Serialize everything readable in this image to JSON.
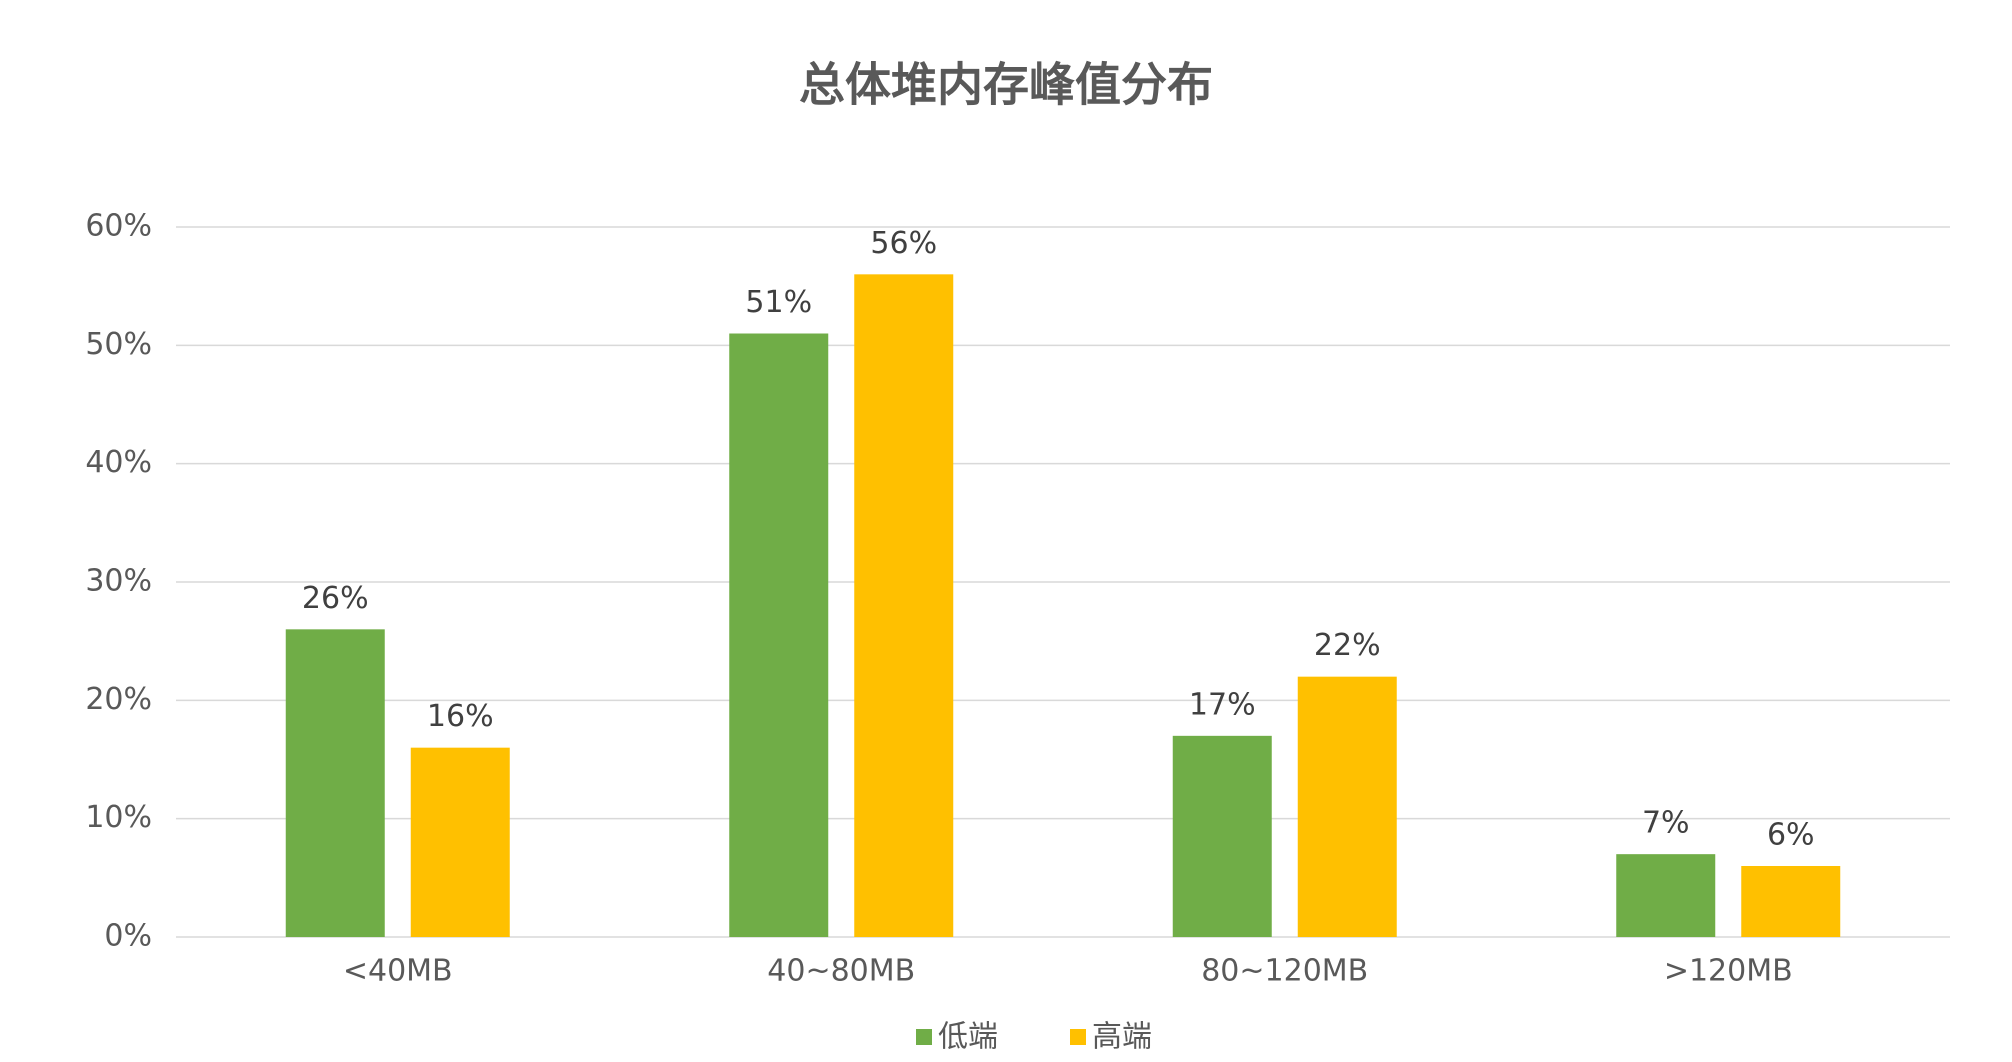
{
  "chart_data": {
    "type": "bar",
    "title": "总体堆内存峰值分布",
    "categories": [
      "<40MB",
      "40~80MB",
      "80~120MB",
      ">120MB"
    ],
    "series": [
      {
        "name": "低端",
        "color": "#70ad47",
        "values": [
          26,
          51,
          17,
          7
        ],
        "value_labels": [
          "26%",
          "51%",
          "17%",
          "7%"
        ]
      },
      {
        "name": "高端",
        "color": "#ffc000",
        "values": [
          16,
          56,
          22,
          6
        ],
        "value_labels": [
          "16%",
          "56%",
          "22%",
          "6%"
        ]
      }
    ],
    "ylim": [
      0,
      60
    ],
    "yticks": [
      {
        "value": 0,
        "label": "0%"
      },
      {
        "value": 10,
        "label": "10%"
      },
      {
        "value": 20,
        "label": "20%"
      },
      {
        "value": 30,
        "label": "30%"
      },
      {
        "value": 40,
        "label": "40%"
      },
      {
        "value": 50,
        "label": "50%"
      },
      {
        "value": 60,
        "label": "60%"
      }
    ],
    "grid": true,
    "legend": "bottom"
  }
}
